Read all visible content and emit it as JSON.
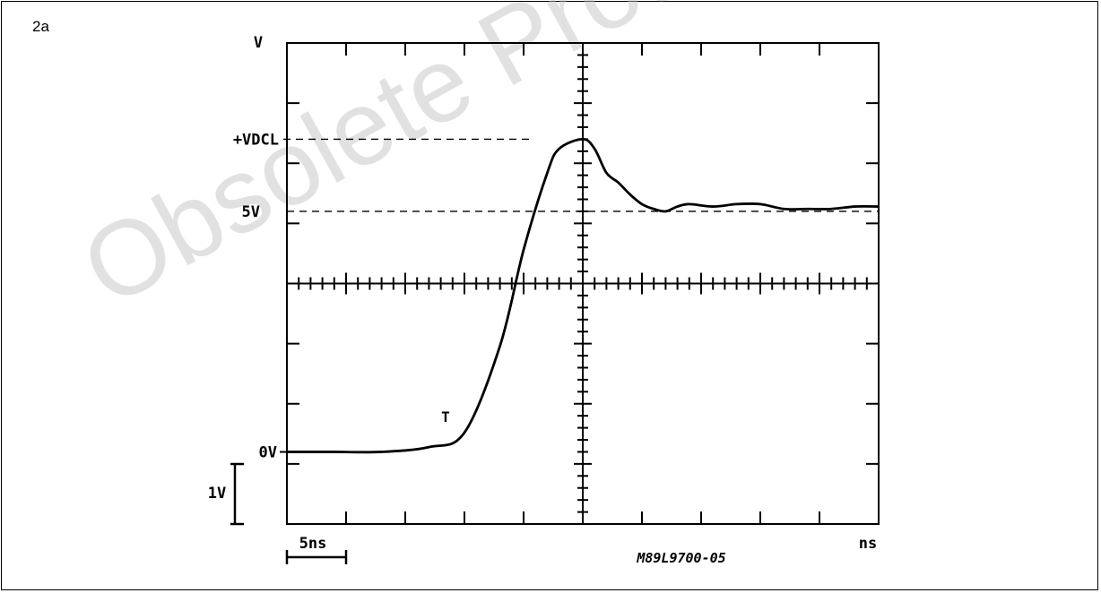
{
  "figure_label": "2a",
  "watermark": "Obsolete Product(s) - Obsolete",
  "chart_data": {
    "type": "line",
    "title": "",
    "xlabel": "ns",
    "ylabel": "V",
    "xlim": [
      0,
      50
    ],
    "ylim": [
      -1.5,
      8.5
    ],
    "x_scale": {
      "label": "5ns",
      "value": 5
    },
    "y_scale": {
      "label": "1V",
      "value": 1
    },
    "y_markers": [
      {
        "label": "+VDCL",
        "value": 6.5
      },
      {
        "label": "5V",
        "value": 5
      },
      {
        "label": "0V",
        "value": 0
      }
    ],
    "trigger_label": "T",
    "reference_code": "M89L9700-05",
    "grid": "10x8 divisions",
    "series": [
      {
        "x": [
          0,
          2,
          4,
          8,
          12,
          15,
          18,
          20,
          22,
          23,
          25,
          26,
          27,
          28,
          29,
          30,
          31,
          32,
          33,
          34,
          36,
          38,
          40,
          42,
          44,
          46,
          48,
          50
        ],
        "y": [
          0,
          0,
          0,
          0,
          0.1,
          0.4,
          2.2,
          4.2,
          5.8,
          6.3,
          6.5,
          6.3,
          5.8,
          5.6,
          5.35,
          5.15,
          5.05,
          5.0,
          5.1,
          5.15,
          5.1,
          5.15,
          5.15,
          5.05,
          5.05,
          5.05,
          5.1,
          5.1
        ]
      }
    ]
  }
}
